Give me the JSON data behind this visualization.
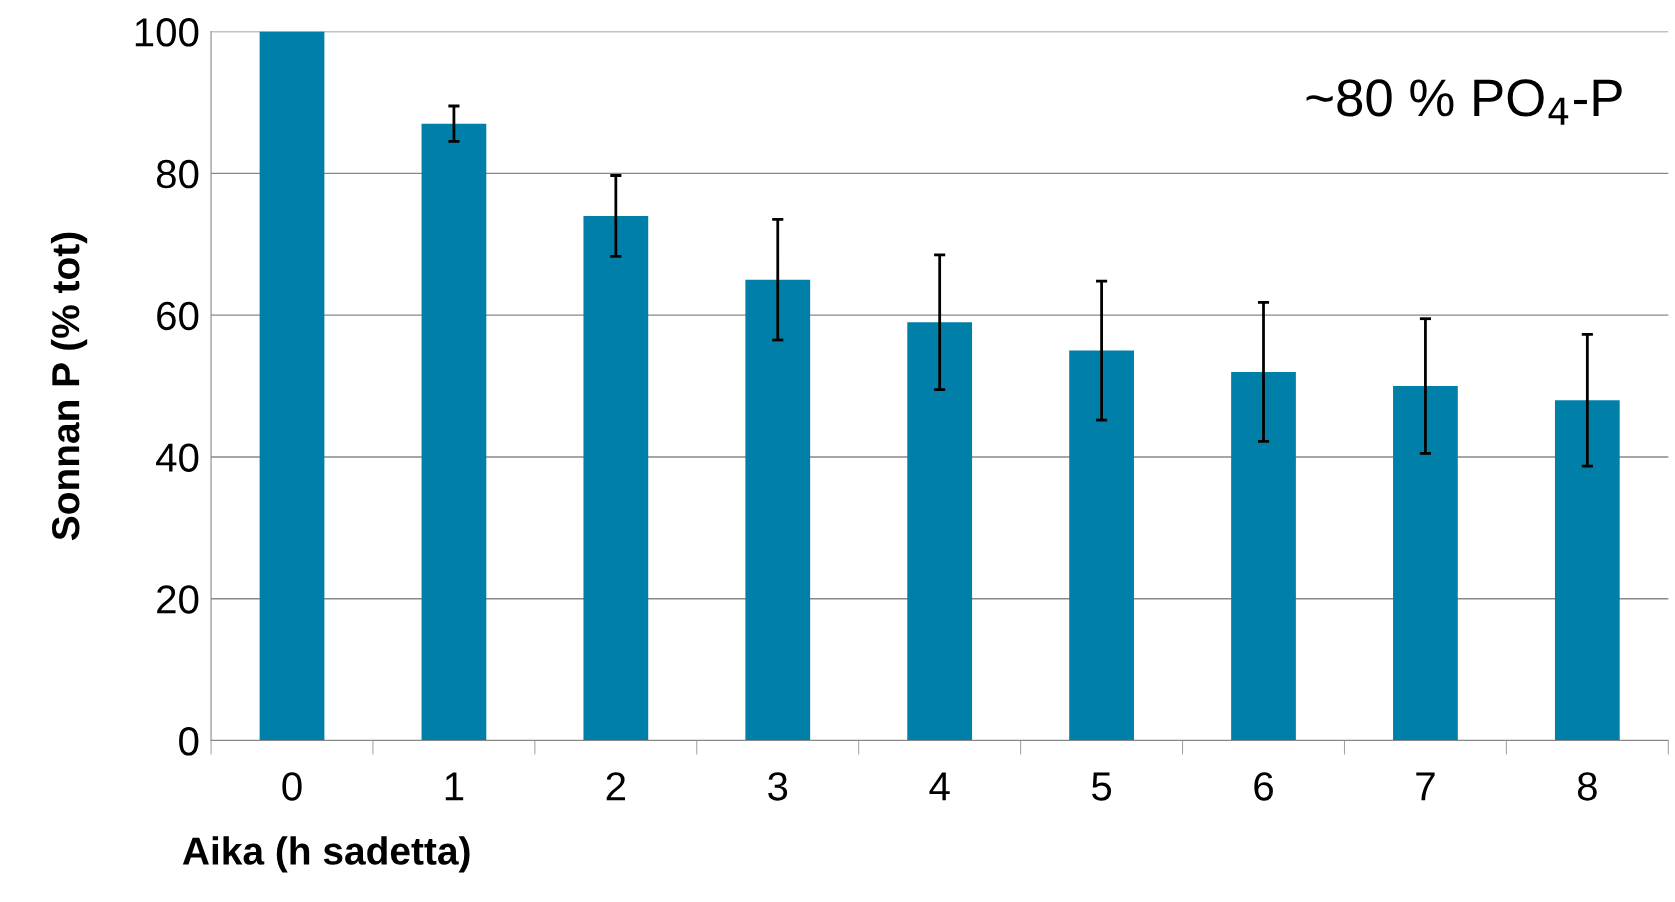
{
  "chart_data": {
    "type": "bar",
    "xlabel": "Aika (h sadetta)",
    "ylabel": "Sonnan P (% tot)",
    "categories": [
      "0",
      "1",
      "2",
      "3",
      "4",
      "5",
      "6",
      "7",
      "8"
    ],
    "values": [
      100,
      87,
      74,
      65,
      59,
      55,
      52,
      50,
      48
    ],
    "errors": [
      null,
      2.5,
      5.7,
      8.5,
      9.5,
      9.8,
      9.8,
      9.5,
      9.3
    ],
    "color": "#0080a8",
    "ylim": [
      0,
      100
    ],
    "yticks": [
      0,
      20,
      40,
      60,
      80,
      100
    ],
    "grid": "y",
    "annotations": [
      "~80 % PO$_{4}$-P"
    ]
  }
}
